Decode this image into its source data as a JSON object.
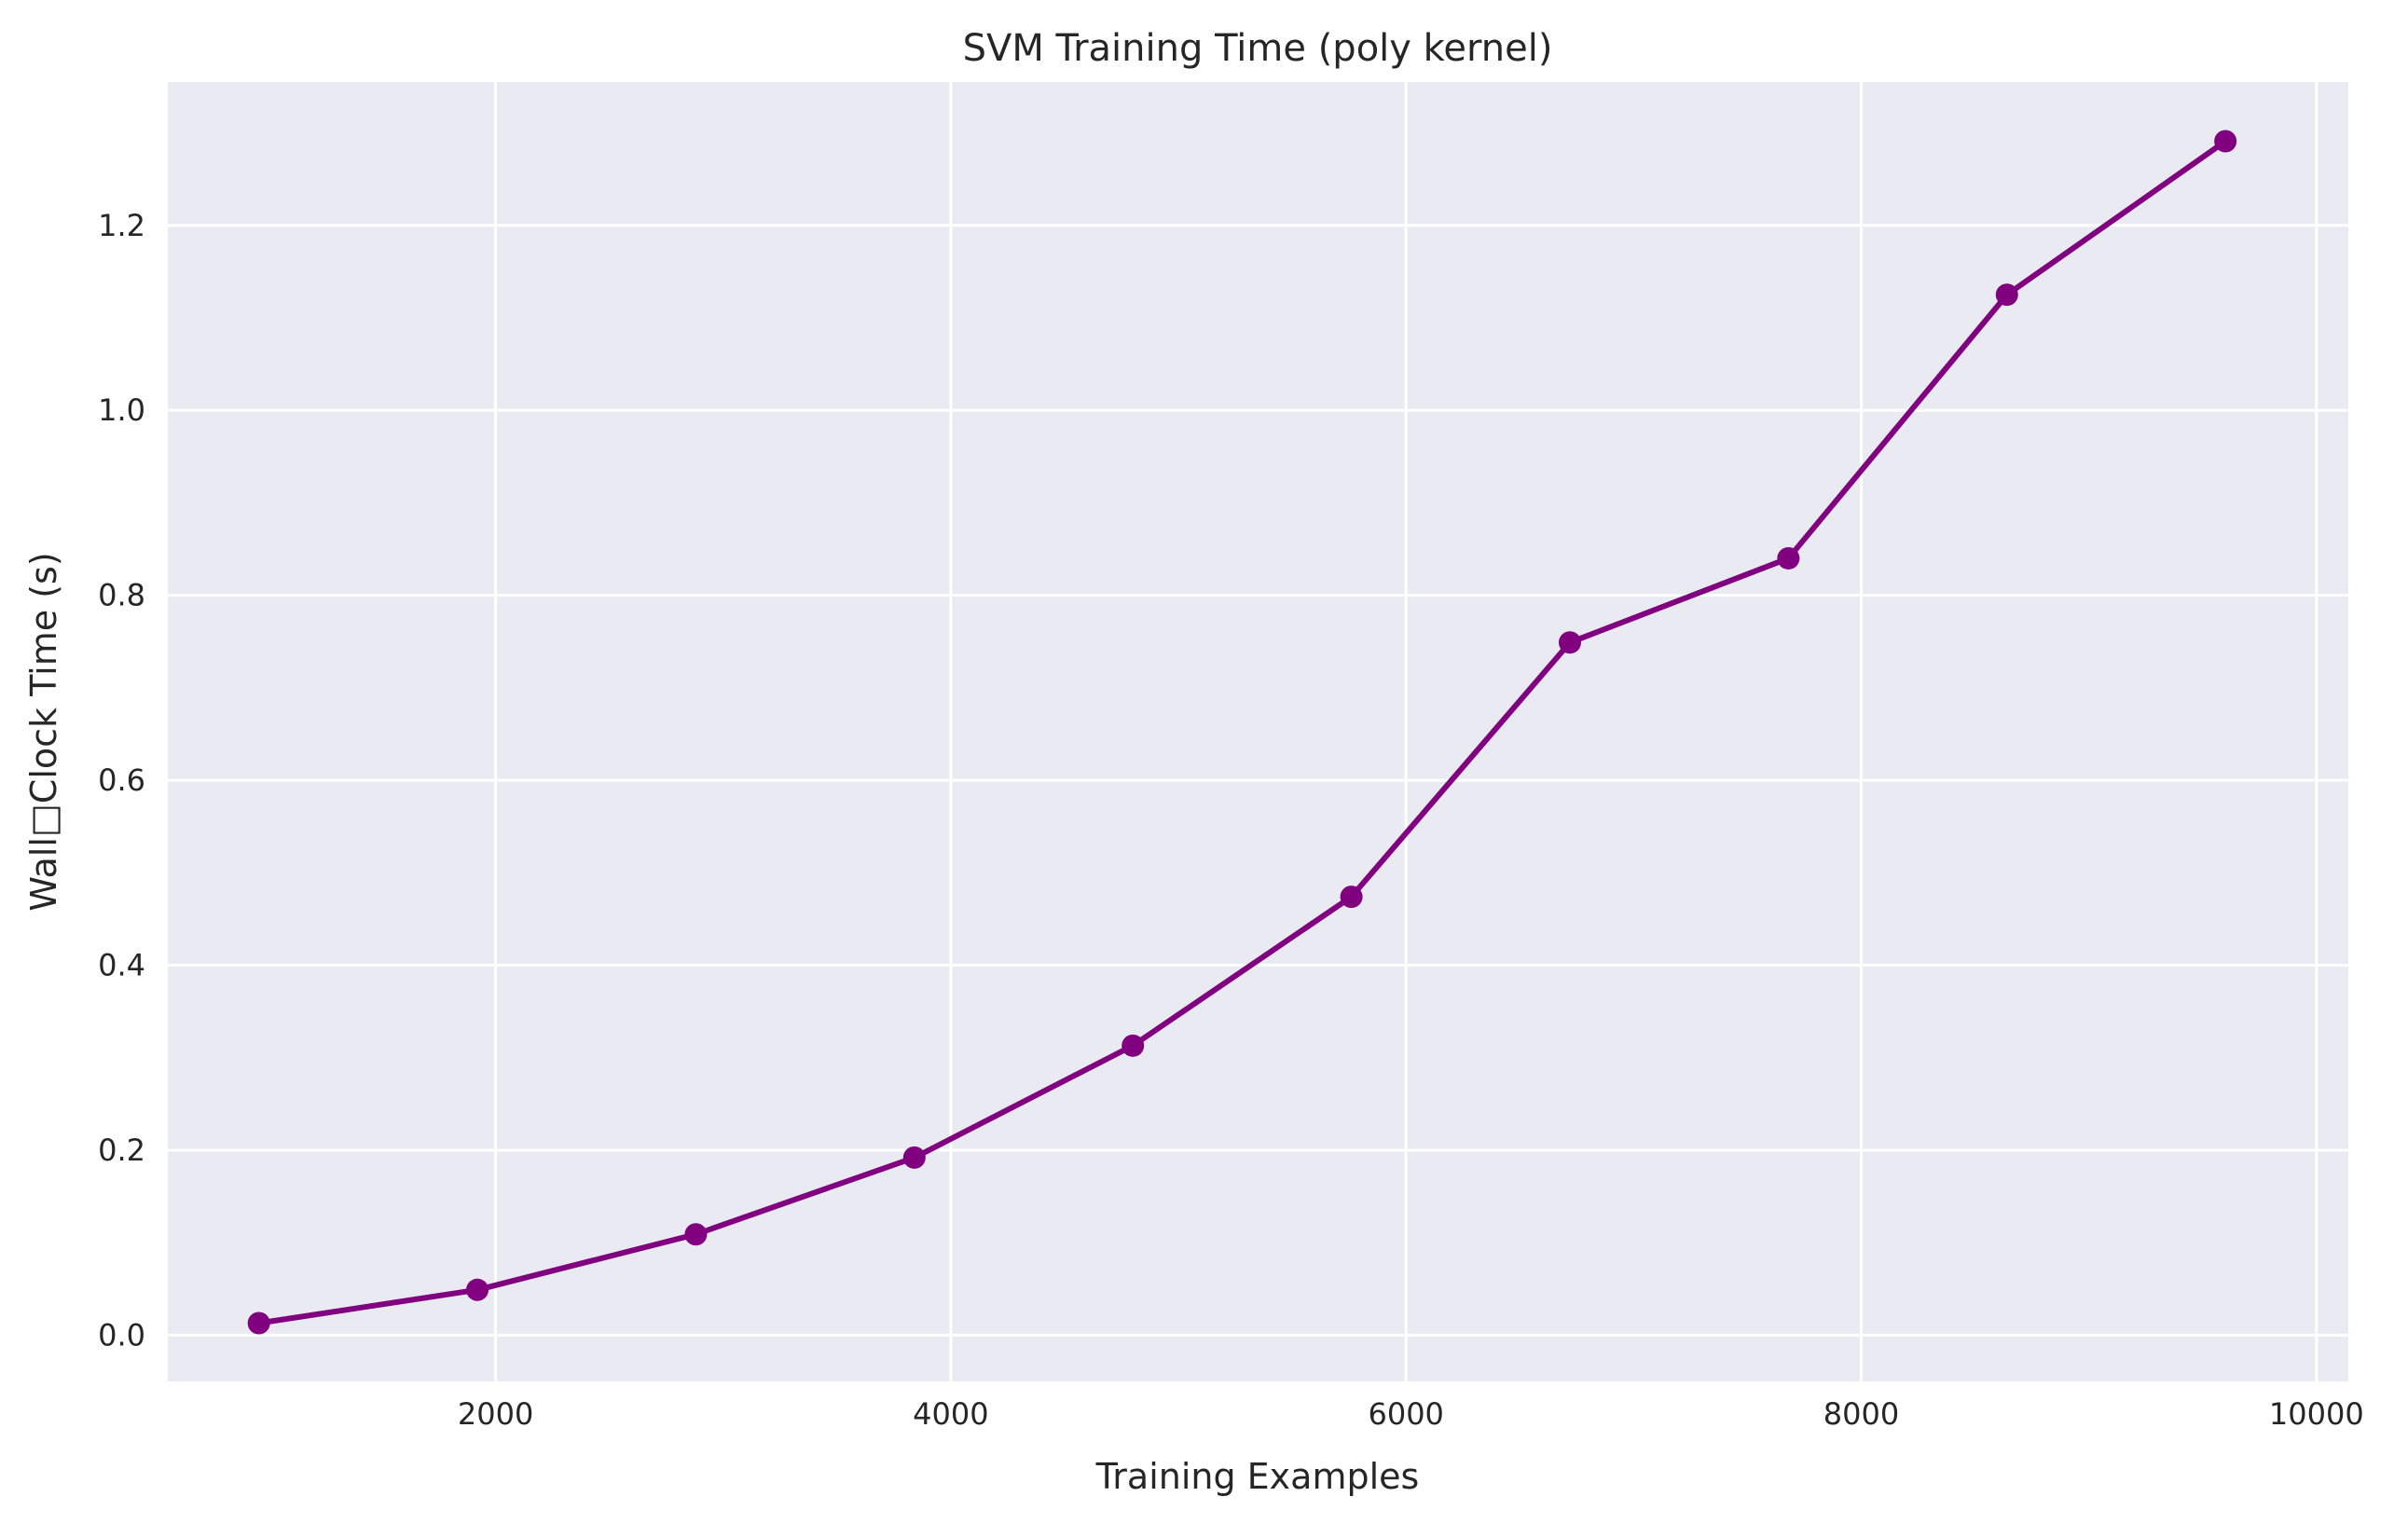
{
  "chart_data": {
    "type": "line",
    "title": "SVM Training Time (poly kernel)",
    "xlabel": "Training Examples",
    "ylabel": "Wall□Clock Time (s)",
    "xlim": [
      560,
      10140
    ],
    "ylim": [
      -0.05,
      1.355
    ],
    "xticks": [
      2000,
      4000,
      6000,
      8000,
      10000
    ],
    "yticks": [
      0.0,
      0.2,
      0.4,
      0.6,
      0.8,
      1.0,
      1.2
    ],
    "xtick_labels": [
      "2000",
      "4000",
      "6000",
      "8000",
      "10000"
    ],
    "ytick_labels": [
      "0.0",
      "0.2",
      "0.4",
      "0.6",
      "0.8",
      "1.0",
      "1.2"
    ],
    "grid": true,
    "style": {
      "background": "#eaeaf2",
      "grid_color": "#ffffff",
      "line_color": "#800080"
    },
    "series": [
      {
        "x": [
          960,
          1920,
          2880,
          3840,
          4800,
          5760,
          6720,
          7680,
          8640,
          9600
        ],
        "y": [
          0.013,
          0.049,
          0.109,
          0.192,
          0.313,
          0.474,
          0.749,
          0.84,
          1.125,
          1.291
        ]
      }
    ]
  }
}
